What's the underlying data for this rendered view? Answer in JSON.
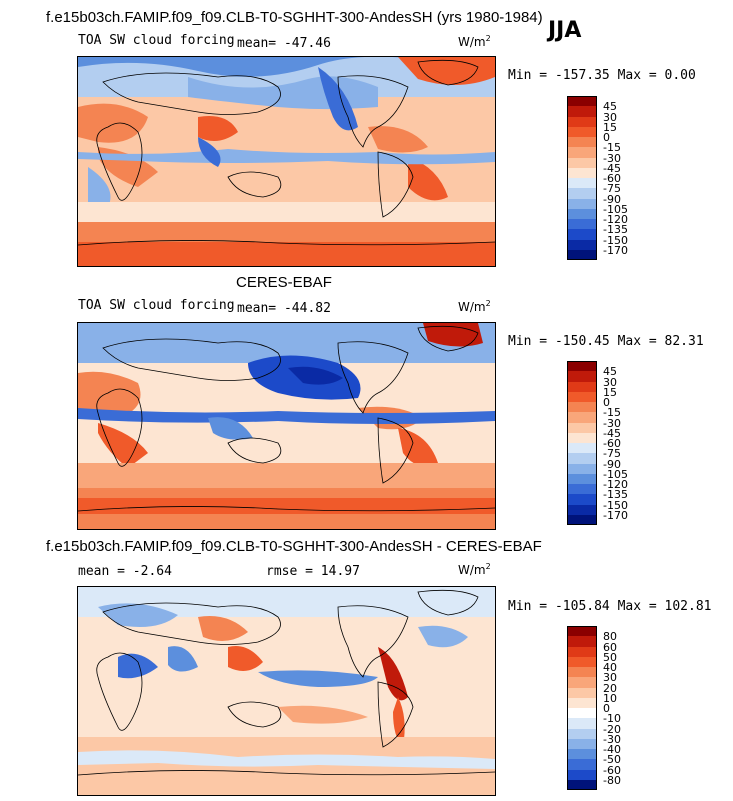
{
  "figure": {
    "season": "JJA"
  },
  "panels": [
    {
      "title": "f.e15b03ch.FAMIP.f09_f09.CLB-T0-SGHHT-300-AndesSH (yrs 1980-1984)",
      "variable": "TOA SW cloud forcing",
      "stat_text": "mean= -47.46",
      "stat2_text": "",
      "units_base": "W/m",
      "units_sup": "2",
      "minmax_text": "Min = -157.35 Max =   0.00",
      "colorbar": {
        "labels": [
          "45",
          "30",
          "15",
          "0",
          "-15",
          "-30",
          "-45",
          "-60",
          "-75",
          "-90",
          "-105",
          "-120",
          "-135",
          "-150",
          "-170"
        ],
        "colors": [
          "#8b0000",
          "#c01a0a",
          "#e03a17",
          "#f05a2a",
          "#f48452",
          "#f9a67a",
          "#fcc8a6",
          "#fde5d2",
          "#dbe9f8",
          "#b3cef0",
          "#89b1e8",
          "#5c8fdd",
          "#3a6cd6",
          "#1c4ac9",
          "#0a2aa5",
          "#00137a"
        ]
      }
    },
    {
      "title": "CERES-EBAF",
      "variable": "TOA SW cloud forcing",
      "stat_text": "mean= -44.82",
      "stat2_text": "",
      "units_base": "W/m",
      "units_sup": "2",
      "minmax_text": "Min = -150.45 Max =  82.31",
      "colorbar": {
        "labels": [
          "45",
          "30",
          "15",
          "0",
          "-15",
          "-30",
          "-45",
          "-60",
          "-75",
          "-90",
          "-105",
          "-120",
          "-135",
          "-150",
          "-170"
        ],
        "colors": [
          "#8b0000",
          "#c01a0a",
          "#e03a17",
          "#f05a2a",
          "#f48452",
          "#f9a67a",
          "#fcc8a6",
          "#fde5d2",
          "#dbe9f8",
          "#b3cef0",
          "#89b1e8",
          "#5c8fdd",
          "#3a6cd6",
          "#1c4ac9",
          "#0a2aa5",
          "#00137a"
        ]
      }
    },
    {
      "title": "f.e15b03ch.FAMIP.f09_f09.CLB-T0-SGHHT-300-AndesSH - CERES-EBAF",
      "variable": "",
      "stat_text": "mean =   -2.64",
      "stat2_text": "rmse =  14.97",
      "units_base": "W/m",
      "units_sup": "2",
      "minmax_text": "Min = -105.84 Max = 102.81",
      "colorbar": {
        "labels": [
          "80",
          "60",
          "50",
          "40",
          "30",
          "20",
          "10",
          "0",
          "-10",
          "-20",
          "-30",
          "-40",
          "-50",
          "-60",
          "-80"
        ],
        "colors": [
          "#8b0000",
          "#c01a0a",
          "#e03a17",
          "#f05a2a",
          "#f48452",
          "#f9a67a",
          "#fcc8a6",
          "#fde5d2",
          "#ffffff",
          "#dbe9f8",
          "#b3cef0",
          "#89b1e8",
          "#5c8fdd",
          "#3a6cd6",
          "#1c4ac9",
          "#00137a"
        ]
      }
    }
  ]
}
